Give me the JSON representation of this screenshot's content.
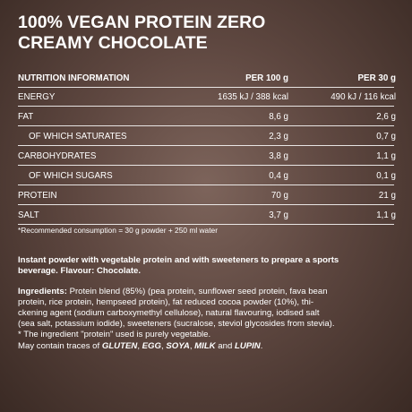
{
  "header": {
    "title_lines": [
      "100% VEGAN PROTEIN ZERO",
      "CREAMY CHOCOLATE"
    ]
  },
  "table": {
    "columns": [
      "NUTRITION INFORMATION",
      "PER 100 g",
      "PER 30 g"
    ],
    "rows": [
      [
        "ENERGY",
        "1635 kJ / 388 kcal",
        "490 kJ / 116 kcal"
      ],
      [
        "FAT",
        "8,6 g",
        "2,6 g"
      ],
      [
        "OF WHICH SATURATES",
        "2,3 g",
        "0,7 g"
      ],
      [
        "CARBOHYDRATES",
        "3,8 g",
        "1,1 g"
      ],
      [
        "OF WHICH SUGARS",
        "0,4 g",
        "0,1 g"
      ],
      [
        "PROTEIN",
        "70 g",
        "21 g"
      ],
      [
        "SALT",
        "3,7 g",
        "1,1 g"
      ]
    ],
    "footnote": "*Recommended consumption = 30 g powder + 250 ml water"
  },
  "description": [
    "Instant powder with vegetable protein and with sweeteners to prepare a sports",
    "beverage. Flavour: Chocolate."
  ],
  "ingredients": {
    "label": "Ingredients:",
    "lines": [
      "Protein blend (85%) (pea protein, sunflower seed protein, fava bean",
      "protein, rice protein, hempseed protein), fat reduced cocoa powder (10%), thi-",
      "ckening agent (sodium carboxymethyl cellulose), natural flavouring, iodised salt",
      "(sea salt, potassium iodide), sweeteners (sucralose, steviol glycosides from stevia).",
      "* The ingredient \"protein\" used is purely vegetable."
    ]
  },
  "traces": [
    "May contain traces of ",
    "GLUTEN",
    ", ",
    "EGG",
    ", ",
    "SOYA",
    ", ",
    "MILK",
    " and ",
    "LUPIN",
    "."
  ]
}
